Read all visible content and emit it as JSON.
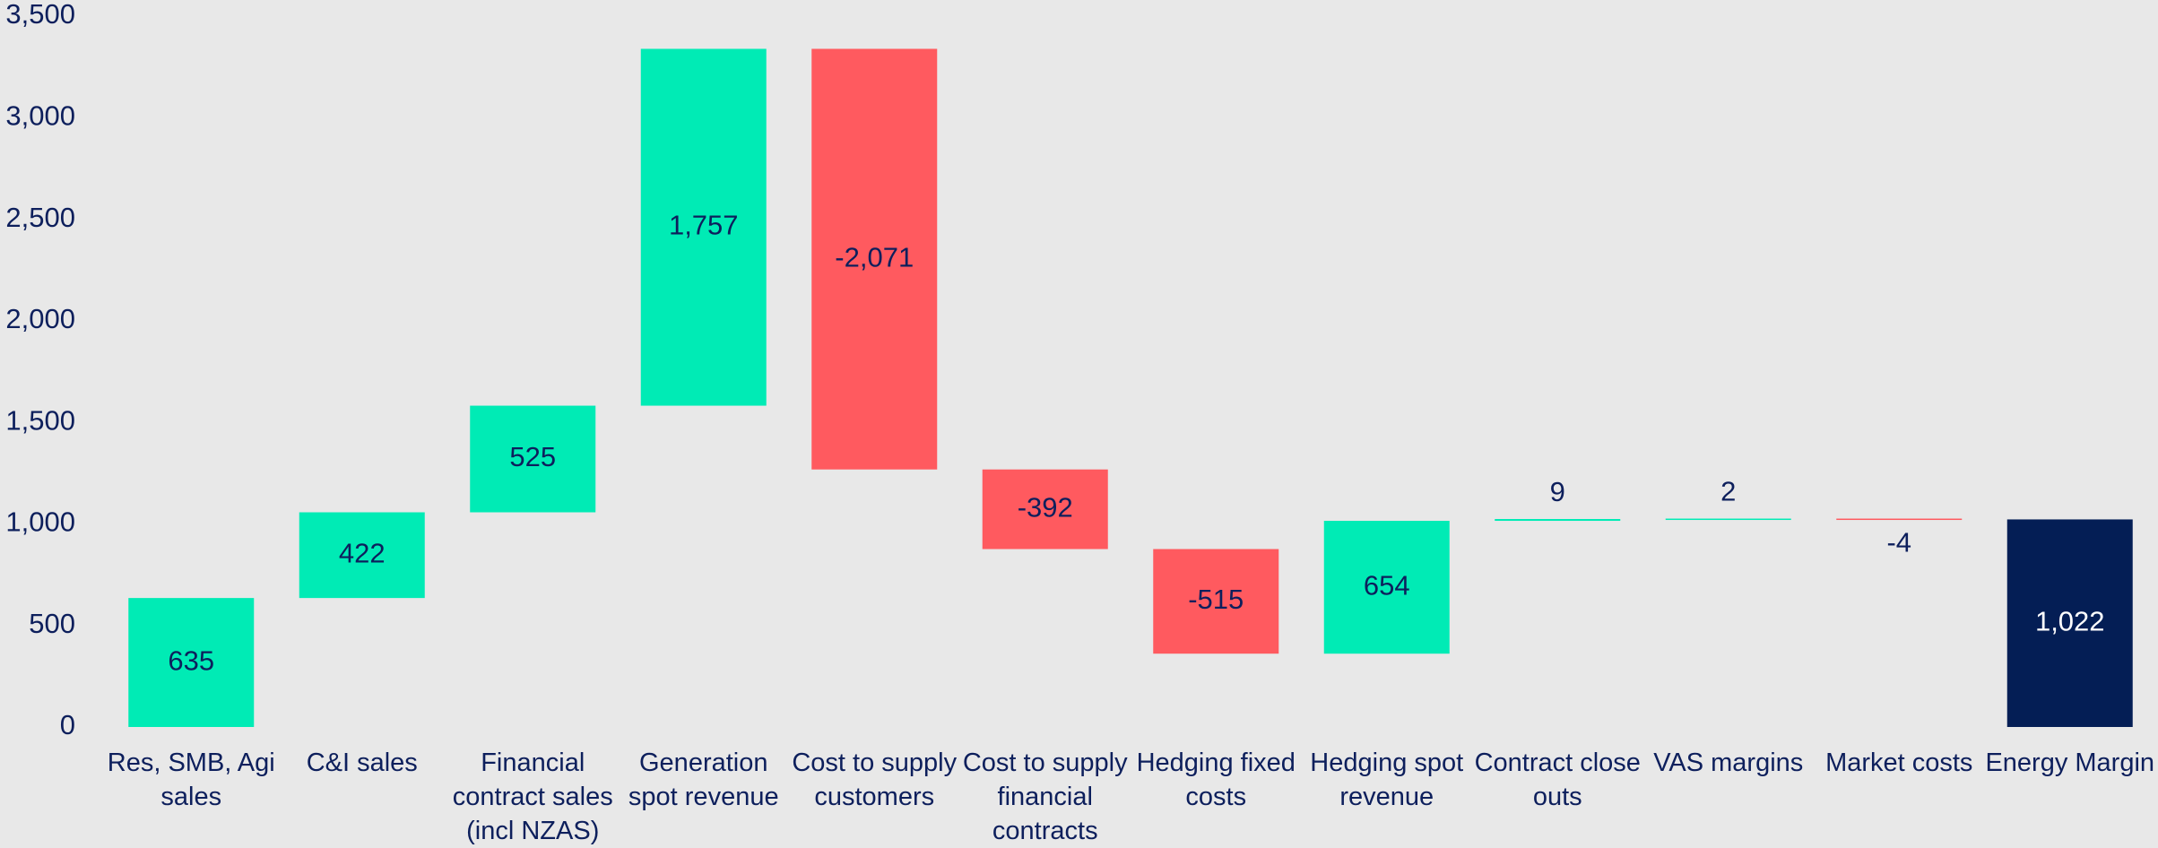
{
  "chart_data": {
    "type": "waterfall",
    "categories": [
      "Res, SMB, Agi sales",
      "C&I sales",
      "Financial contract sales (incl NZAS)",
      "Generation spot revenue",
      "Cost to supply customers",
      "Cost to supply financial contracts",
      "Hedging fixed costs",
      "Hedging spot revenue",
      "Contract close outs",
      "VAS margins",
      "Market costs",
      "Energy Margin"
    ],
    "values": [
      635,
      422,
      525,
      1757,
      -2071,
      -392,
      -515,
      654,
      9,
      2,
      -4,
      1022
    ],
    "value_labels": [
      "635",
      "422",
      "525",
      "1,757",
      "-2,071",
      "-392",
      "-515",
      "654",
      "9",
      "2",
      "-4",
      "1,022"
    ],
    "measure": [
      "relative",
      "relative",
      "relative",
      "relative",
      "relative",
      "relative",
      "relative",
      "relative",
      "relative",
      "relative",
      "relative",
      "total"
    ],
    "colors": {
      "increase": "#00ebb5",
      "decrease": "#ff5a5f",
      "total": "#041e55"
    },
    "ylim": [
      0,
      3500
    ],
    "yticks": [
      0,
      500,
      {
        "value": 1000,
        "label": "1,000"
      },
      {
        "value": 1500,
        "label": "1,500"
      },
      {
        "value": 2000,
        "label": "2,000"
      },
      {
        "value": 2500,
        "label": "2,500"
      },
      {
        "value": 3000,
        "label": "3,000"
      },
      {
        "value": 3500,
        "label": "3,500"
      }
    ],
    "grid": false
  }
}
